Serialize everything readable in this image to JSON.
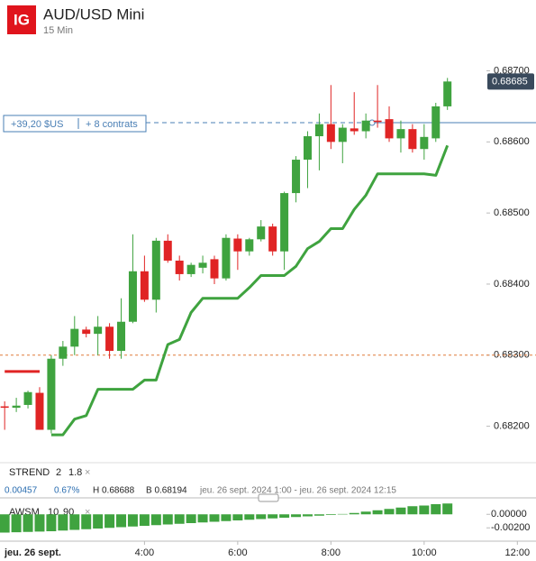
{
  "header": {
    "logo": "IG",
    "title": "AUD/USD Mini",
    "subtitle": "15 Min"
  },
  "position": {
    "price": 0.68627,
    "pnl": "+39,20 $US",
    "size": "+ 8 contrats",
    "color": "#4a7fb5"
  },
  "alert_line": {
    "value": 0.683,
    "color": "#e07a3a"
  },
  "last_price": {
    "value": 0.68685,
    "label": "0.68685"
  },
  "info": [
    "0.00457",
    "0.67%",
    "H 0.68688",
    "B 0.68194",
    "jeu. 26 sept. 2024 1:00 - jeu. 26 sept. 2024 12:15"
  ],
  "chart_data": [
    {
      "type": "candlestick",
      "x_date_label": "jeu. 26 sept.",
      "x": [
        1,
        1.25,
        1.5,
        1.75,
        2,
        2.25,
        2.5,
        2.75,
        3,
        3.25,
        3.5,
        3.75,
        4,
        4.25,
        4.5,
        4.75,
        5,
        5.25,
        5.5,
        5.75,
        6,
        6.25,
        6.5,
        6.75,
        7,
        7.25,
        7.5,
        7.75,
        8,
        8.25,
        8.5,
        8.75,
        9,
        9.25,
        9.5,
        9.75,
        10,
        10.25,
        10.5
      ],
      "open": [
        0.68228,
        0.68226,
        0.6823,
        0.68247,
        0.68195,
        0.68295,
        0.68312,
        0.68336,
        0.6833,
        0.6834,
        0.68306,
        0.68347,
        0.68418,
        0.68378,
        0.68461,
        0.68433,
        0.68414,
        0.68423,
        0.68435,
        0.68408,
        0.68464,
        0.68446,
        0.68463,
        0.68481,
        0.68446,
        0.68528,
        0.68575,
        0.68608,
        0.68625,
        0.686,
        0.68619,
        0.68615,
        0.6863,
        0.68632,
        0.68605,
        0.68618,
        0.6859,
        0.68605,
        0.6865
      ],
      "high": [
        0.68235,
        0.6824,
        0.6825,
        0.68255,
        0.683,
        0.6832,
        0.68355,
        0.6834,
        0.68355,
        0.68345,
        0.6838,
        0.6847,
        0.6844,
        0.68465,
        0.6847,
        0.6844,
        0.6843,
        0.6844,
        0.6844,
        0.6847,
        0.6847,
        0.68465,
        0.6849,
        0.68485,
        0.6853,
        0.6858,
        0.68615,
        0.6864,
        0.6868,
        0.68625,
        0.6867,
        0.6864,
        0.6868,
        0.6865,
        0.6863,
        0.68625,
        0.68625,
        0.68655,
        0.6869
      ],
      "low": [
        0.68195,
        0.6822,
        0.68225,
        0.68195,
        0.6819,
        0.68285,
        0.683,
        0.68325,
        0.683,
        0.68295,
        0.68295,
        0.68345,
        0.68375,
        0.6836,
        0.6843,
        0.68405,
        0.6841,
        0.68415,
        0.684,
        0.68405,
        0.6842,
        0.6844,
        0.6846,
        0.6844,
        0.6842,
        0.68515,
        0.68535,
        0.6856,
        0.6859,
        0.6857,
        0.6861,
        0.68605,
        0.6862,
        0.686,
        0.68585,
        0.68585,
        0.68575,
        0.686,
        0.68645
      ],
      "close": [
        0.68226,
        0.68229,
        0.68248,
        0.68195,
        0.68295,
        0.68312,
        0.68337,
        0.6833,
        0.6834,
        0.68306,
        0.68347,
        0.68418,
        0.68378,
        0.68461,
        0.68433,
        0.68414,
        0.68427,
        0.6843,
        0.68408,
        0.68465,
        0.68446,
        0.68463,
        0.68481,
        0.68446,
        0.68528,
        0.68575,
        0.68608,
        0.68625,
        0.686,
        0.6862,
        0.68615,
        0.6863,
        0.68628,
        0.68605,
        0.68618,
        0.6859,
        0.68607,
        0.6865,
        0.68685
      ],
      "up_color": "#3fa33f",
      "down_color": "#e02424",
      "indicator": {
        "name": "STREND",
        "params": [
          2,
          1.8
        ],
        "up_color": "#3fa33f",
        "down_color": "#e02424",
        "values_down": [
          0.68277,
          0.68277,
          0.68277,
          0.68277,
          null,
          null,
          null,
          null,
          null,
          null,
          null,
          null,
          null,
          null,
          null,
          null,
          null,
          null,
          null,
          null,
          null,
          null,
          null,
          null,
          null,
          null,
          null,
          null,
          null,
          null,
          null,
          null,
          null,
          null,
          null,
          null,
          null,
          null,
          null
        ],
        "values_up": [
          null,
          null,
          null,
          null,
          0.68188,
          0.68188,
          0.6821,
          0.68215,
          0.68252,
          0.68252,
          0.68252,
          0.68252,
          0.68265,
          0.68265,
          0.68315,
          0.68322,
          0.6836,
          0.6838,
          0.6838,
          0.6838,
          0.6838,
          0.68395,
          0.68412,
          0.68412,
          0.68412,
          0.68425,
          0.6845,
          0.6846,
          0.68478,
          0.68478,
          0.68505,
          0.68525,
          0.68555,
          0.68555,
          0.68555,
          0.68555,
          0.68555,
          0.68553,
          0.68595
        ]
      },
      "xlim": [
        0.9,
        12.4
      ],
      "xticks": [
        {
          "value": 4,
          "label": "4:00"
        },
        {
          "value": 6,
          "label": "6:00"
        },
        {
          "value": 8,
          "label": "8:00"
        },
        {
          "value": 10,
          "label": "10:00"
        },
        {
          "value": 12,
          "label": "12:00"
        }
      ],
      "ylim": [
        0.6815,
        0.6874
      ],
      "yticks": [
        {
          "value": 0.682,
          "label": "0.68200"
        },
        {
          "value": 0.683,
          "label": "0.68300"
        },
        {
          "value": 0.684,
          "label": "0.68400"
        },
        {
          "value": 0.685,
          "label": "0.68500"
        },
        {
          "value": 0.686,
          "label": "0.68600"
        },
        {
          "value": 0.687,
          "label": "0.68700"
        }
      ]
    },
    {
      "type": "bar",
      "name": "AWSM",
      "params": [
        10,
        90
      ],
      "color": "#3fa33f",
      "values": [
        -0.0027,
        -0.00265,
        -0.0026,
        -0.00255,
        -0.0025,
        -0.0024,
        -0.0023,
        -0.0022,
        -0.0021,
        -0.002,
        -0.0019,
        -0.0018,
        -0.0017,
        -0.0016,
        -0.0015,
        -0.0014,
        -0.0013,
        -0.0012,
        -0.0011,
        -0.001,
        -0.0009,
        -0.0008,
        -0.0007,
        -0.0006,
        -0.0005,
        -0.0004,
        -0.0003,
        -0.0002,
        -0.0001,
        5e-05,
        0.0002,
        0.0004,
        0.0006,
        0.0008,
        0.001,
        0.0012,
        0.0013,
        0.0015,
        0.0016
      ],
      "ylim": [
        -0.0037,
        0.0019
      ],
      "yticks": [
        {
          "value": 0,
          "label": "0.00000"
        },
        {
          "value": -0.002,
          "label": "-0.00200"
        }
      ]
    }
  ]
}
